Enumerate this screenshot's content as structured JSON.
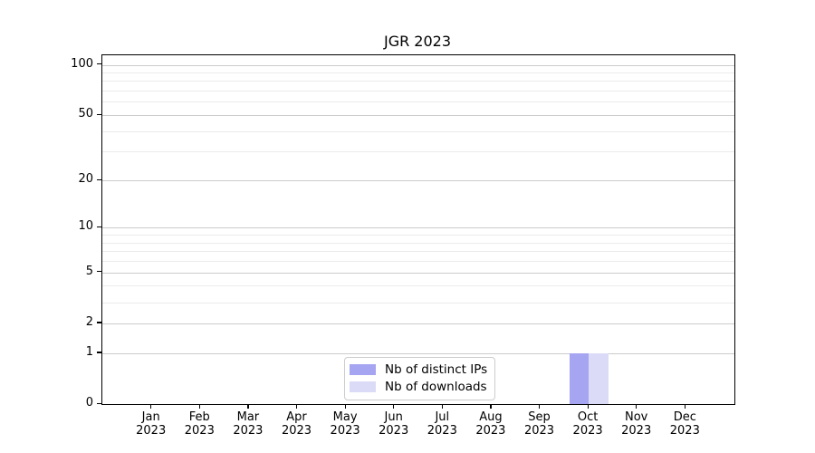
{
  "chart_data": {
    "type": "bar",
    "title": "JGR 2023",
    "categories": [
      "Jan",
      "Feb",
      "Mar",
      "Apr",
      "May",
      "Jun",
      "Jul",
      "Aug",
      "Sep",
      "Oct",
      "Nov",
      "Dec"
    ],
    "x_tick_year": "2023",
    "series": [
      {
        "name": "Nb of distinct IPs",
        "color": "#a5a5f1",
        "values": [
          0,
          0,
          0,
          0,
          0,
          0,
          0,
          0,
          0,
          1,
          0,
          0
        ]
      },
      {
        "name": "Nb of downloads",
        "color": "#dbdbf8",
        "values": [
          0,
          0,
          0,
          0,
          0,
          0,
          0,
          0,
          0,
          1,
          0,
          0
        ]
      }
    ],
    "yscale": "log1p",
    "ylim": [
      0,
      114
    ],
    "y_major_ticks": [
      0,
      1,
      2,
      5,
      10,
      20,
      50,
      100
    ],
    "y_minor_ticks": [
      3,
      4,
      6,
      7,
      8,
      9,
      30,
      40,
      60,
      70,
      80,
      90
    ],
    "grid": "horizontal",
    "legend_position": "lower-center-inside",
    "colors": {
      "major_grid": "#cccccc",
      "minor_grid": "#ebebeb",
      "axis": "#000000",
      "text": "#000000",
      "background": "#ffffff"
    }
  }
}
